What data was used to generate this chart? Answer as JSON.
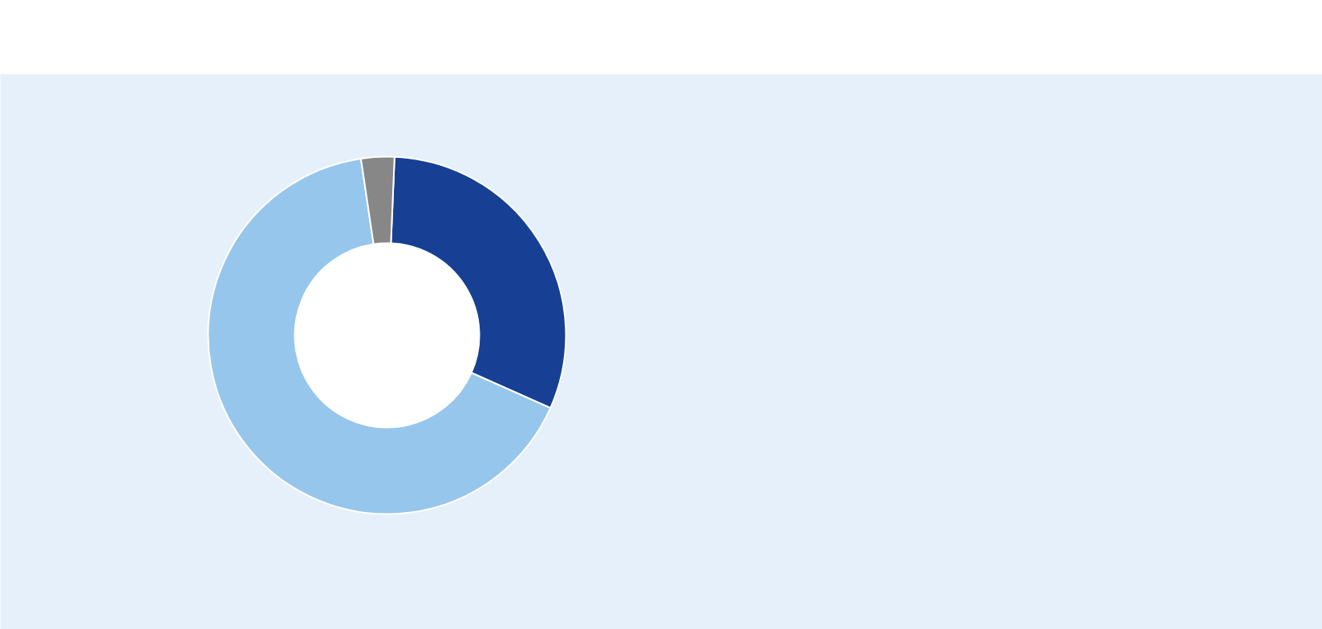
{
  "chart_data": {
    "type": "donut",
    "categories": [
      null,
      null,
      null
    ],
    "values": [
      31,
      66,
      3
    ],
    "colors": [
      "#174094",
      "#96c6ec",
      "#878787"
    ]
  }
}
